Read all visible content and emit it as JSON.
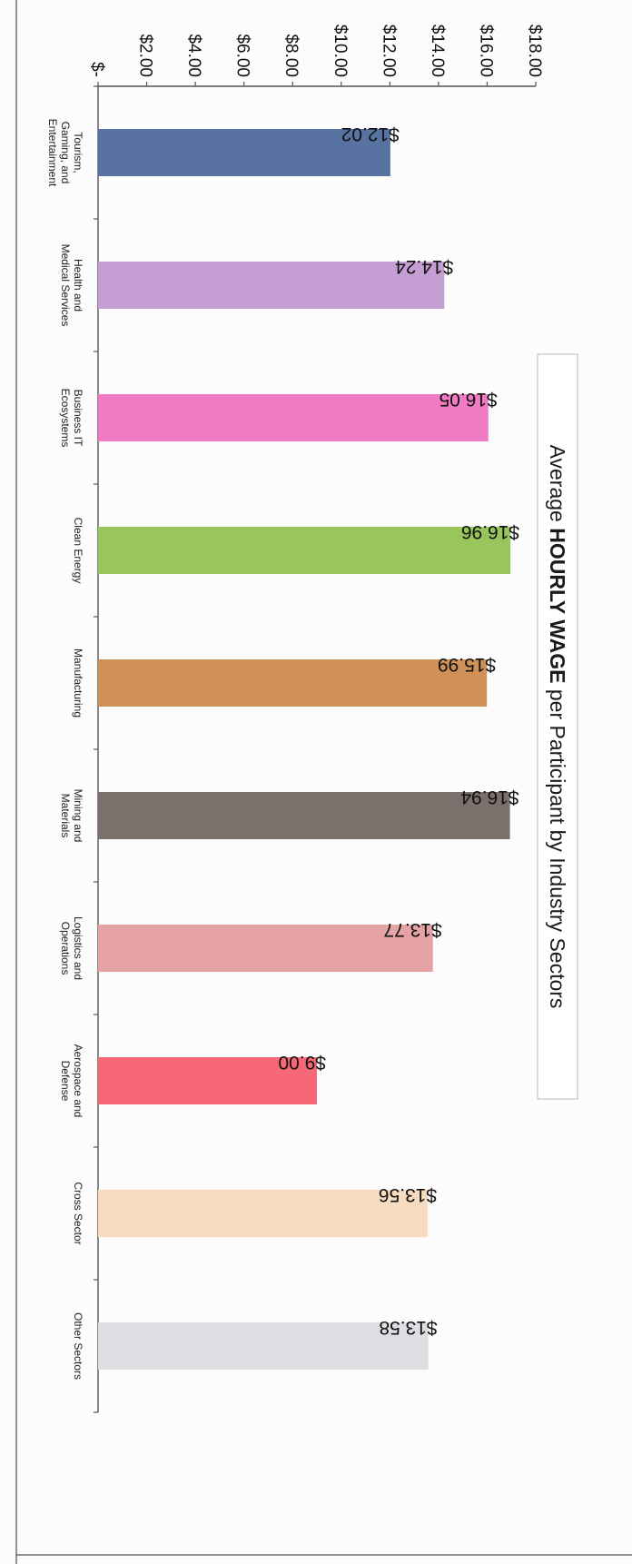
{
  "chart_data": {
    "type": "bar",
    "orientation": "vertical",
    "title": {
      "prefix": "Average ",
      "emphasis": "HOURLY WAGE",
      "suffix": " per Participant by Industry Sectors"
    },
    "xlabel": "",
    "ylabel": "",
    "ylim": [
      0,
      18
    ],
    "yticks": [
      {
        "value": 0,
        "label": "$-"
      },
      {
        "value": 2,
        "label": "$2.00"
      },
      {
        "value": 4,
        "label": "$4.00"
      },
      {
        "value": 6,
        "label": "$6.00"
      },
      {
        "value": 8,
        "label": "$8.00"
      },
      {
        "value": 10,
        "label": "$10.00"
      },
      {
        "value": 12,
        "label": "$12.00"
      },
      {
        "value": 14,
        "label": "$14.00"
      },
      {
        "value": 16,
        "label": "$16.00"
      },
      {
        "value": 18,
        "label": "$18.00"
      }
    ],
    "grid": false,
    "legend": "none",
    "categories": [
      {
        "lines": [
          "Tourism,",
          "Gaming, and",
          "Entertainment"
        ],
        "value": 12.02,
        "label": "$12.02",
        "color": "#5872a2"
      },
      {
        "lines": [
          "Health and",
          "Medical Services"
        ],
        "value": 14.24,
        "label": "$14.24",
        "color": "#c59fd4"
      },
      {
        "lines": [
          "Business IT",
          "Ecosystems"
        ],
        "value": 16.05,
        "label": "$16.05",
        "color": "#f27cc4"
      },
      {
        "lines": [
          "Clean Energy"
        ],
        "value": 16.96,
        "label": "$16.96",
        "color": "#99c65c"
      },
      {
        "lines": [
          "Manufacturing"
        ],
        "value": 15.99,
        "label": "$15.99",
        "color": "#cf9157"
      },
      {
        "lines": [
          "Mining and",
          "Materials"
        ],
        "value": 16.94,
        "label": "$16.94",
        "color": "#7b706c"
      },
      {
        "lines": [
          "Logistics and",
          "Operations"
        ],
        "value": 13.77,
        "label": "$13.77",
        "color": "#e6a3a6"
      },
      {
        "lines": [
          "Aerospace and",
          "Defense"
        ],
        "value": 9.0,
        "label": "$9.00",
        "color": "#f76876"
      },
      {
        "lines": [
          "Cross Sector"
        ],
        "value": 13.56,
        "label": "$13.56",
        "color": "#f7dcc1"
      },
      {
        "lines": [
          "Other Sectors"
        ],
        "value": 13.58,
        "label": "$13.58",
        "color": "#dedde2"
      }
    ]
  }
}
